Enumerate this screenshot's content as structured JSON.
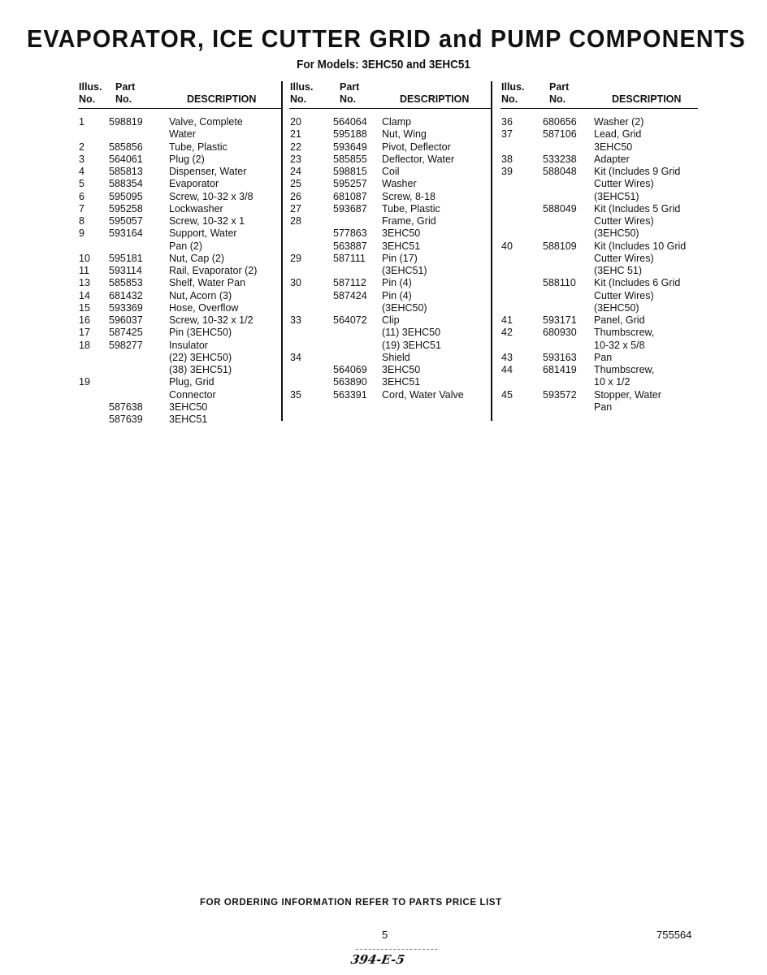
{
  "title": "EVAPORATOR, ICE CUTTER GRID and PUMP COMPONENTS",
  "subtitle": "For Models: 3EHC50 and 3EHC51",
  "headers": {
    "illus": [
      "Illus.",
      "No."
    ],
    "part": [
      "Part",
      "No."
    ],
    "description": "DESCRIPTION"
  },
  "columns": [
    [
      {
        "illus": "1",
        "part": "598819",
        "desc": [
          "Valve, Complete",
          "Water"
        ]
      },
      {
        "illus": "2",
        "part": "585856",
        "desc": [
          "Tube, Plastic"
        ]
      },
      {
        "illus": "3",
        "part": "564061",
        "desc": [
          "Plug (2)"
        ]
      },
      {
        "illus": "4",
        "part": "585813",
        "desc": [
          "Dispenser, Water"
        ]
      },
      {
        "illus": "5",
        "part": "588354",
        "desc": [
          "Evaporator"
        ]
      },
      {
        "illus": "6",
        "part": "595095",
        "desc": [
          "Screw, 10-32 x 3/8"
        ]
      },
      {
        "illus": "7",
        "part": "595258",
        "desc": [
          "Lockwasher"
        ]
      },
      {
        "illus": "8",
        "part": "595057",
        "desc": [
          "Screw, 10-32 x 1"
        ]
      },
      {
        "illus": "9",
        "part": "593164",
        "desc": [
          "Support, Water",
          "Pan (2)"
        ]
      },
      {
        "illus": "10",
        "part": "595181",
        "desc": [
          "Nut, Cap (2)"
        ]
      },
      {
        "illus": "11",
        "part": "593114",
        "desc": [
          "Rail, Evaporator (2)"
        ]
      },
      {
        "illus": "13",
        "part": "585853",
        "desc": [
          "Shelf, Water Pan"
        ]
      },
      {
        "illus": "14",
        "part": "681432",
        "desc": [
          "Nut, Acorn (3)"
        ]
      },
      {
        "illus": "15",
        "part": "593369",
        "desc": [
          "Hose, Overflow"
        ]
      },
      {
        "illus": "16",
        "part": "596037",
        "desc": [
          "Screw, 10-32 x 1/2"
        ]
      },
      {
        "illus": "17",
        "part": "587425",
        "desc": [
          "Pin (3EHC50)"
        ]
      },
      {
        "illus": "18",
        "part": "598277",
        "desc": [
          "Insulator",
          "(22) 3EHC50)",
          "(38) 3EHC51)"
        ]
      },
      {
        "illus": "19",
        "part": "",
        "desc": [
          "Plug, Grid",
          "Connector"
        ]
      },
      {
        "illus": "",
        "part": "587638",
        "desc": [
          "3EHC50"
        ]
      },
      {
        "illus": "",
        "part": "587639",
        "desc": [
          "3EHC51"
        ]
      }
    ],
    [
      {
        "illus": "20",
        "part": "564064",
        "desc": [
          "Clamp"
        ]
      },
      {
        "illus": "21",
        "part": "595188",
        "desc": [
          "Nut, Wing"
        ]
      },
      {
        "illus": "22",
        "part": "593649",
        "desc": [
          "Pivot, Deflector"
        ]
      },
      {
        "illus": "23",
        "part": "585855",
        "desc": [
          "Deflector, Water"
        ]
      },
      {
        "illus": "24",
        "part": "598815",
        "desc": [
          "Coil"
        ]
      },
      {
        "illus": "25",
        "part": "595257",
        "desc": [
          "Washer"
        ]
      },
      {
        "illus": "26",
        "part": "681087",
        "desc": [
          "Screw, 8-18"
        ]
      },
      {
        "illus": "27",
        "part": "593687",
        "desc": [
          "Tube, Plastic"
        ]
      },
      {
        "illus": "28",
        "part": "",
        "desc": [
          "Frame, Grid"
        ]
      },
      {
        "illus": "",
        "part": "577863",
        "desc": [
          "3EHC50"
        ]
      },
      {
        "illus": "",
        "part": "563887",
        "desc": [
          "3EHC51"
        ]
      },
      {
        "illus": "29",
        "part": "587111",
        "desc": [
          "Pin (17)",
          "(3EHC51)"
        ]
      },
      {
        "illus": "30",
        "part": "587112",
        "desc": [
          "Pin (4)"
        ]
      },
      {
        "illus": "",
        "part": "587424",
        "desc": [
          "Pin (4)",
          "(3EHC50)"
        ]
      },
      {
        "illus": "33",
        "part": "564072",
        "desc": [
          "Clip",
          "(11) 3EHC50",
          "(19) 3EHC51"
        ]
      },
      {
        "illus": "34",
        "part": "",
        "desc": [
          "Shield"
        ]
      },
      {
        "illus": "",
        "part": "564069",
        "desc": [
          "3EHC50"
        ]
      },
      {
        "illus": "",
        "part": "563890",
        "desc": [
          "3EHC51"
        ]
      },
      {
        "illus": "35",
        "part": "563391",
        "desc": [
          "Cord, Water Valve"
        ]
      }
    ],
    [
      {
        "illus": "36",
        "part": "680656",
        "desc": [
          "Washer (2)"
        ]
      },
      {
        "illus": "37",
        "part": "587106",
        "desc": [
          "Lead, Grid",
          "3EHC50"
        ]
      },
      {
        "illus": "38",
        "part": "533238",
        "desc": [
          "Adapter"
        ]
      },
      {
        "illus": "39",
        "part": "588048",
        "desc": [
          "Kit (Includes 9 Grid",
          "Cutter Wires)",
          "(3EHC51)"
        ]
      },
      {
        "illus": "",
        "part": "588049",
        "desc": [
          "Kit (Includes 5 Grid",
          "Cutter Wires)",
          "(3EHC50)"
        ]
      },
      {
        "illus": "40",
        "part": "588109",
        "desc": [
          "Kit (Includes 10 Grid",
          "Cutter Wires)",
          "(3EHC 51)"
        ]
      },
      {
        "illus": "",
        "part": "588110",
        "desc": [
          "Kit (Includes 6 Grid",
          "Cutter Wires)",
          "(3EHC50)"
        ]
      },
      {
        "illus": "41",
        "part": "593171",
        "desc": [
          "Panel, Grid"
        ]
      },
      {
        "illus": "42",
        "part": "680930",
        "desc": [
          "Thumbscrew,",
          "10-32 x 5/8"
        ]
      },
      {
        "illus": "43",
        "part": "593163",
        "desc": [
          "Pan"
        ]
      },
      {
        "illus": "44",
        "part": "681419",
        "desc": [
          "Thumbscrew,",
          "10 x 1/2"
        ]
      },
      {
        "illus": "45",
        "part": "593572",
        "desc": [
          "Stopper, Water",
          "Pan"
        ]
      }
    ]
  ],
  "footer": {
    "ordering_note": "FOR ORDERING INFORMATION REFER TO PARTS PRICE LIST",
    "page_number": "5",
    "document_number": "755564",
    "handwritten_note": "394-E-5"
  }
}
